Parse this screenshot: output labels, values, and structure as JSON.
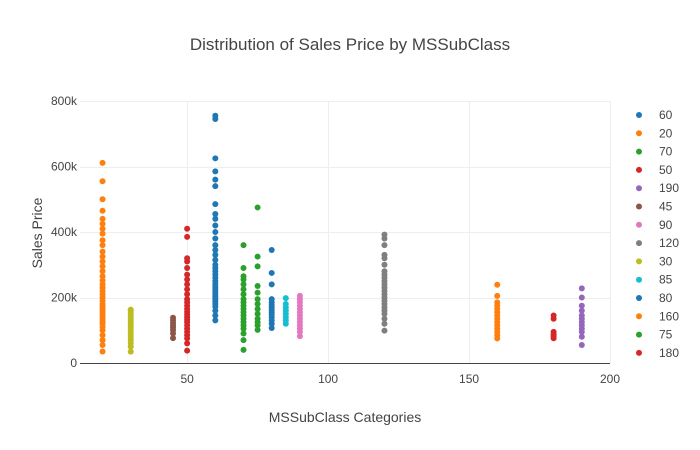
{
  "chart_data": {
    "type": "scatter",
    "title": "Distribution of Sales Price by MSSubClass",
    "xlabel": "MSSubClass Categories",
    "ylabel": "Sales Price",
    "xlim": [
      12,
      200
    ],
    "ylim": [
      0,
      800000
    ],
    "xticks": [
      50,
      100,
      150,
      200
    ],
    "xtick_labels": [
      "50",
      "100",
      "150",
      "200"
    ],
    "yticks": [
      0,
      200000,
      400000,
      600000,
      800000
    ],
    "ytick_labels": [
      "0",
      "200k",
      "400k",
      "600k",
      "800k"
    ],
    "grid": true,
    "legend_position": "right",
    "series": [
      {
        "name": "60",
        "x": 60,
        "color": "#1f77b4",
        "values": [
          130000,
          145000,
          160000,
          172000,
          180000,
          188000,
          195000,
          202000,
          210000,
          218000,
          225000,
          232000,
          240000,
          250000,
          260000,
          270000,
          280000,
          290000,
          300000,
          315000,
          330000,
          345000,
          360000,
          380000,
          400000,
          420000,
          440000,
          455000,
          485000,
          540000,
          560000,
          585000,
          625000,
          745000,
          755000
        ]
      },
      {
        "name": "20",
        "x": 20,
        "color": "#ff7f0e",
        "values": [
          35000,
          55000,
          70000,
          85000,
          100000,
          110000,
          120000,
          128000,
          135000,
          142000,
          150000,
          158000,
          165000,
          172000,
          180000,
          190000,
          200000,
          210000,
          220000,
          230000,
          240000,
          252000,
          265000,
          280000,
          295000,
          310000,
          325000,
          340000,
          360000,
          375000,
          395000,
          410000,
          425000,
          440000,
          465000,
          500000,
          555000,
          611000
        ]
      },
      {
        "name": "70",
        "x": 70,
        "color": "#2ca02c",
        "values": [
          40000,
          70000,
          90000,
          105000,
          115000,
          125000,
          135000,
          145000,
          155000,
          165000,
          175000,
          185000,
          195000,
          210000,
          225000,
          240000,
          255000,
          265000,
          290000,
          360000
        ]
      },
      {
        "name": "50",
        "x": 50,
        "color": "#d62728",
        "values": [
          37900,
          60000,
          75000,
          85000,
          95000,
          105000,
          115000,
          125000,
          132000,
          140000,
          148000,
          156000,
          165000,
          175000,
          185000,
          195000,
          210000,
          225000,
          240000,
          255000,
          270000,
          290000,
          310000,
          320000,
          385000,
          410000
        ]
      },
      {
        "name": "190",
        "x": 190,
        "color": "#9467bd",
        "values": [
          55000,
          80000,
          95000,
          105000,
          115000,
          125000,
          135000,
          145000,
          160000,
          175000,
          200000,
          228000
        ]
      },
      {
        "name": "45",
        "x": 45,
        "color": "#8c564b",
        "values": [
          76000,
          90000,
          100000,
          108000,
          115000,
          122000,
          130000,
          138000
        ]
      },
      {
        "name": "90",
        "x": 90,
        "color": "#e377c2",
        "values": [
          82000,
          95000,
          105000,
          115000,
          125000,
          135000,
          145000,
          155000,
          165000,
          175000,
          185000,
          195000,
          205000
        ]
      },
      {
        "name": "120",
        "x": 120,
        "color": "#7f7f7f",
        "values": [
          99000,
          120000,
          135000,
          150000,
          160000,
          170000,
          180000,
          190000,
          200000,
          210000,
          220000,
          230000,
          240000,
          250000,
          260000,
          270000,
          280000,
          300000,
          320000,
          330000,
          360000,
          380000,
          392000
        ]
      },
      {
        "name": "30",
        "x": 30,
        "color": "#bcbd22",
        "values": [
          34900,
          50000,
          60000,
          70000,
          78000,
          85000,
          92000,
          100000,
          108000,
          115000,
          122000,
          130000,
          138000,
          145000,
          152000,
          160000,
          163000
        ]
      },
      {
        "name": "85",
        "x": 85,
        "color": "#17becf",
        "values": [
          120000,
          130000,
          140000,
          150000,
          160000,
          170000,
          180000,
          198000
        ]
      },
      {
        "name": "80",
        "x": 80,
        "color": "#1f77b4",
        "values": [
          107000,
          120000,
          130000,
          140000,
          148000,
          155000,
          162000,
          170000,
          178000,
          185000,
          195000,
          240000,
          275000,
          345000
        ]
      },
      {
        "name": "160",
        "x": 160,
        "color": "#ff7f0e",
        "values": [
          75000,
          85000,
          95000,
          105000,
          115000,
          125000,
          135000,
          145000,
          155000,
          165000,
          175000,
          185000,
          205000,
          239000
        ]
      },
      {
        "name": "75",
        "x": 75,
        "color": "#2ca02c",
        "values": [
          101000,
          115000,
          125000,
          135000,
          150000,
          165000,
          180000,
          195000,
          215000,
          235000,
          295000,
          325000,
          475000
        ]
      },
      {
        "name": "180",
        "x": 180,
        "color": "#d62728",
        "values": [
          75500,
          82000,
          88000,
          95000,
          135000,
          145000
        ]
      }
    ]
  }
}
